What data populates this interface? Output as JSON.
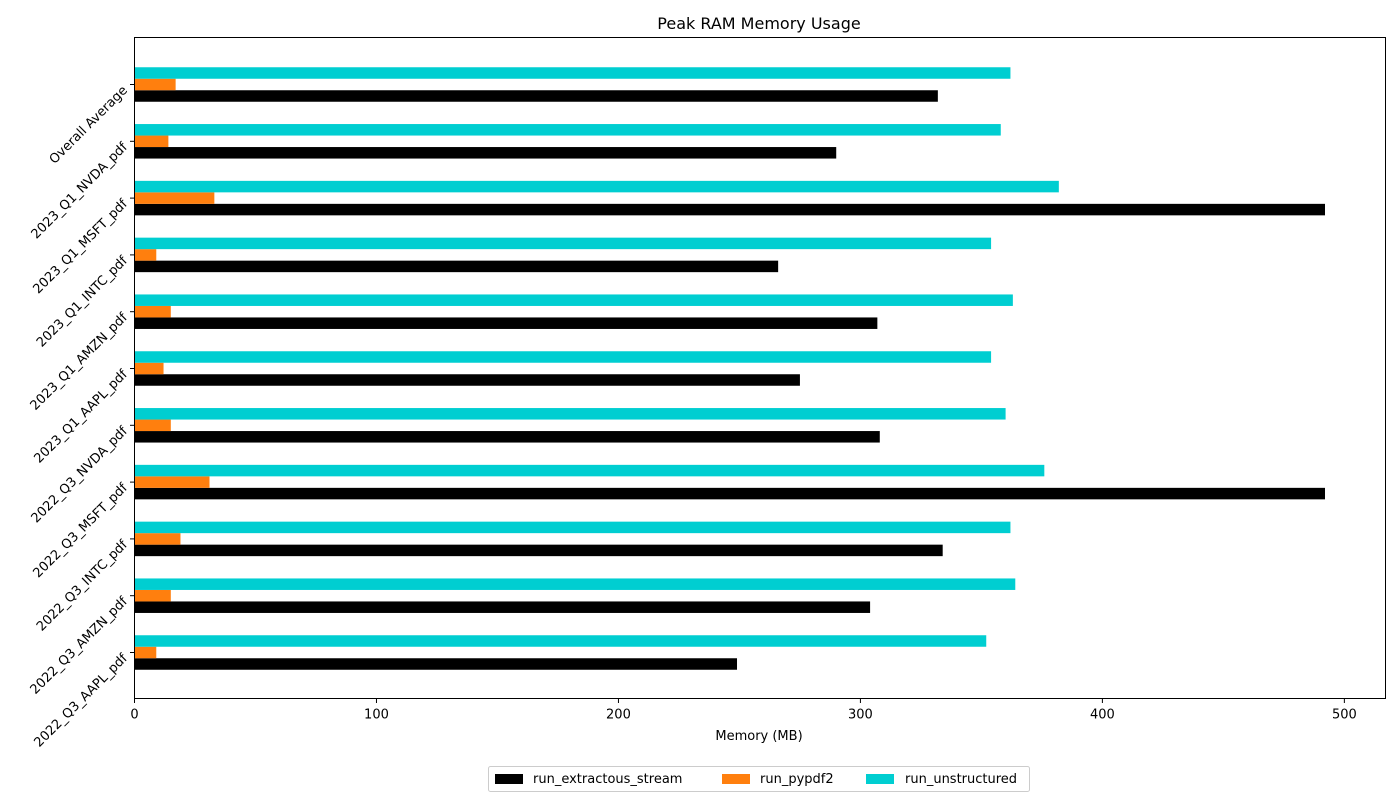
{
  "chart_data": {
    "type": "bar",
    "orientation": "horizontal",
    "title": "Peak RAM Memory Usage",
    "xlabel": "Memory (MB)",
    "ylabel": "",
    "xlim": [
      0,
      517
    ],
    "xticks": [
      0,
      100,
      200,
      300,
      400,
      500
    ],
    "grid": false,
    "legend_position": "bottom-center",
    "categories": [
      "2022_Q3_AAPL_pdf",
      "2022_Q3_AMZN_pdf",
      "2022_Q3_INTC_pdf",
      "2022_Q3_MSFT_pdf",
      "2022_Q3_NVDA_pdf",
      "2023_Q1_AAPL_pdf",
      "2023_Q1_AMZN_pdf",
      "2023_Q1_INTC_pdf",
      "2023_Q1_MSFT_pdf",
      "2023_Q1_NVDA_pdf",
      "Overall Average"
    ],
    "series": [
      {
        "name": "run_extractous_stream",
        "color": "#000000",
        "values": [
          249,
          304,
          334,
          492,
          308,
          275,
          307,
          266,
          492,
          290,
          332
        ]
      },
      {
        "name": "run_pypdf2",
        "color": "#ff7f0e",
        "values": [
          9,
          15,
          19,
          31,
          15,
          12,
          15,
          9,
          33,
          14,
          17
        ]
      },
      {
        "name": "run_unstructured",
        "color": "#00ced1",
        "values": [
          352,
          364,
          362,
          376,
          360,
          354,
          363,
          354,
          382,
          358,
          362
        ]
      }
    ]
  }
}
